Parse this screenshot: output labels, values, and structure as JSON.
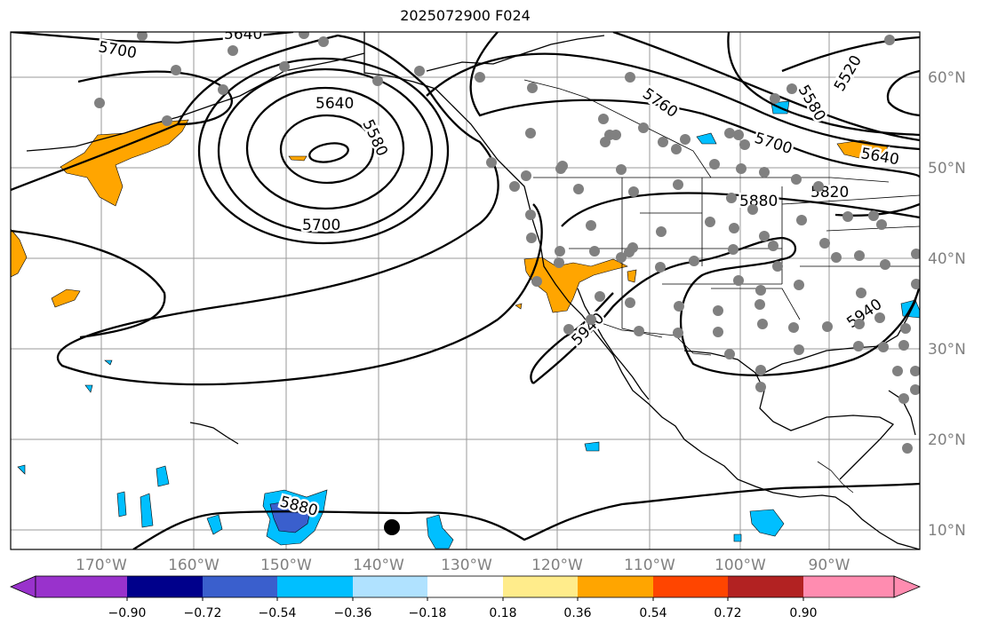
{
  "title": "2025072900 F024",
  "longitude_labels": [
    "170°W",
    "160°W",
    "150°W",
    "140°W",
    "130°W",
    "120°W",
    "110°W",
    "100°W",
    "90°W"
  ],
  "latitude_labels": [
    "60°N",
    "50°N",
    "40°N",
    "30°N",
    "20°N",
    "10°N"
  ],
  "contour_labels": [
    "5700",
    "5640",
    "5640",
    "5580",
    "5700",
    "5760",
    "5580",
    "5520",
    "5700",
    "5640",
    "5880",
    "5820",
    "5940",
    "5940",
    "5880"
  ],
  "colorbar": {
    "tick_labels": [
      "−0.90",
      "−0.72",
      "−0.54",
      "−0.36",
      "−0.18",
      "0.18",
      "0.36",
      "0.54",
      "0.72",
      "0.90"
    ],
    "colors": [
      "#9932cc",
      "#00008b",
      "#3a5fcd",
      "#00bfff",
      "#b0e2ff",
      "#ffffff",
      "#ffec8b",
      "#ffa500",
      "#ff4500",
      "#b22222",
      "#ff8cb0"
    ]
  },
  "colors": {
    "grid": "#9a9a9a",
    "station": "#808080",
    "positive_fill": "#ffa500",
    "negative_fill": "#00bfff",
    "strong_negative_fill": "#3a5fcd"
  }
}
